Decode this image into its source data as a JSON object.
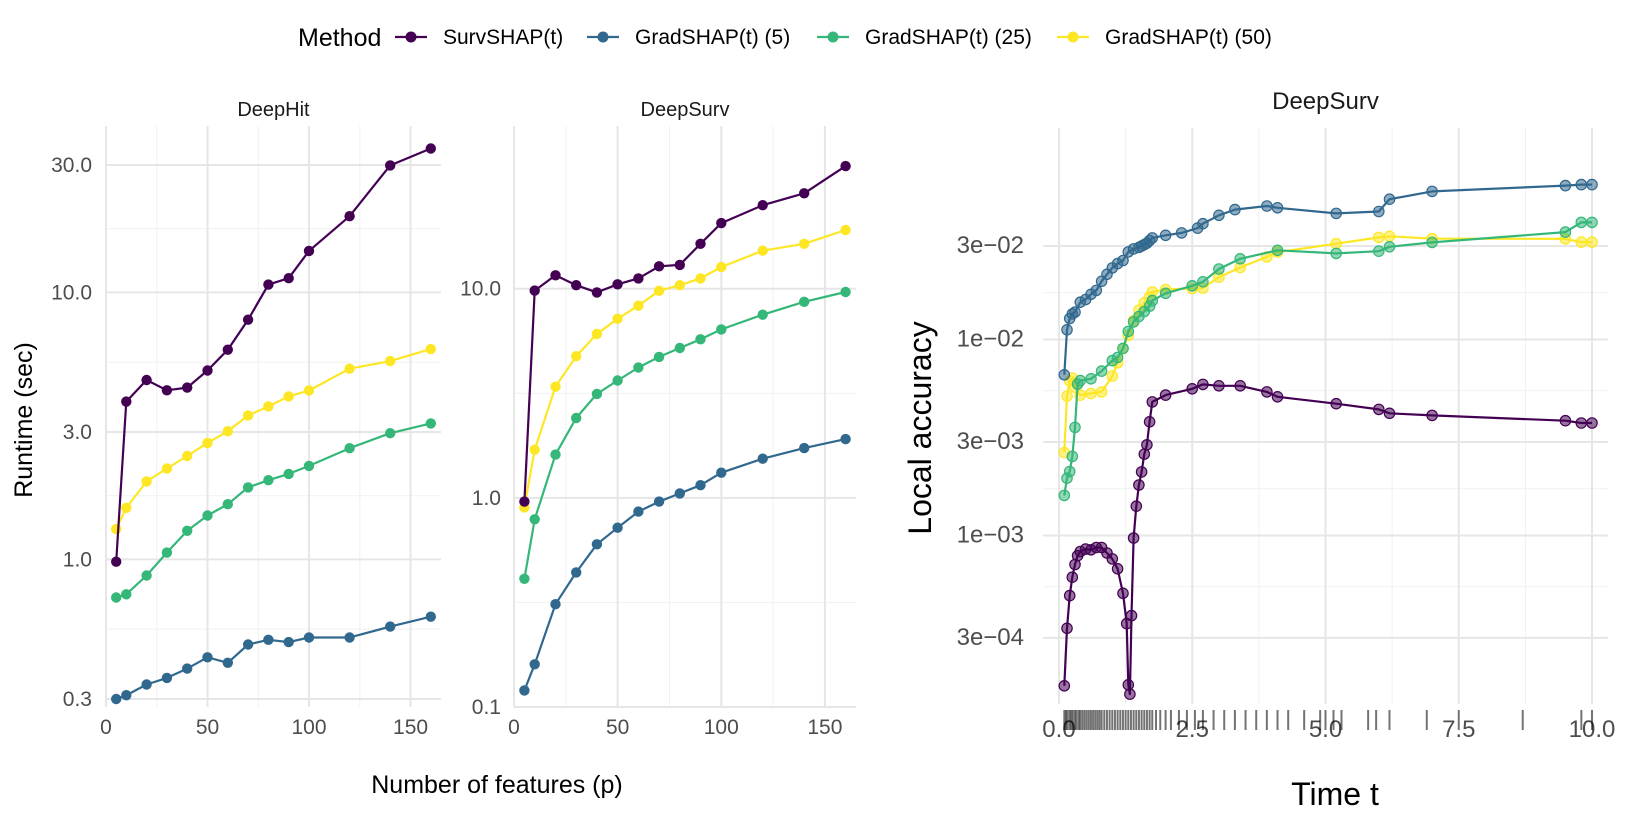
{
  "legend": {
    "title": "Method",
    "methods": [
      {
        "name": "SurvSHAP(t)",
        "color": "#440154"
      },
      {
        "name": "GradSHAP(t) (5)",
        "color": "#31688e"
      },
      {
        "name": "GradSHAP(t) (25)",
        "color": "#35b779"
      },
      {
        "name": "GradSHAP(t) (50)",
        "color": "#fde725"
      }
    ]
  },
  "chart_data": [
    {
      "type": "line",
      "title": "DeepHit",
      "ylabel": "Runtime (sec)",
      "xlabel": "Number of features (p)",
      "yscale": "log",
      "xlim": [
        0,
        165
      ],
      "ylim": [
        0.28,
        42
      ],
      "xticks": [
        0,
        50,
        100,
        150
      ],
      "xtick_labels": [
        "0",
        "50",
        "100",
        "150"
      ],
      "yticks": [
        0.3,
        1,
        3,
        10,
        30
      ],
      "ytick_labels": [
        "0.3",
        "1.0",
        "3.0",
        "10.0",
        "30.0"
      ],
      "x": [
        5,
        10,
        20,
        30,
        40,
        50,
        60,
        70,
        80,
        90,
        100,
        120,
        140,
        160
      ],
      "series": [
        {
          "name": "SurvSHAP(t)",
          "values": [
            0.98,
            3.9,
            4.7,
            4.3,
            4.4,
            5.1,
            6.1,
            7.9,
            10.7,
            11.3,
            14.3,
            19.3,
            29.9,
            34.6
          ]
        },
        {
          "name": "GradSHAP(t) (5)",
          "values": [
            0.3,
            0.31,
            0.34,
            0.36,
            0.39,
            0.43,
            0.41,
            0.48,
            0.5,
            0.49,
            0.51,
            0.51,
            0.56,
            0.61
          ]
        },
        {
          "name": "GradSHAP(t) (25)",
          "values": [
            0.72,
            0.74,
            0.87,
            1.06,
            1.28,
            1.46,
            1.61,
            1.86,
            1.98,
            2.09,
            2.24,
            2.61,
            2.97,
            3.23
          ]
        },
        {
          "name": "GradSHAP(t) (50)",
          "values": [
            1.3,
            1.56,
            1.96,
            2.19,
            2.44,
            2.73,
            3.02,
            3.46,
            3.74,
            4.08,
            4.29,
            5.18,
            5.53,
            6.13
          ]
        }
      ]
    },
    {
      "type": "line",
      "title": "DeepSurv",
      "ylabel": "",
      "xlabel": "",
      "yscale": "log",
      "xlim": [
        0,
        165
      ],
      "ylim": [
        0.1,
        60
      ],
      "xticks": [
        0,
        50,
        100,
        150
      ],
      "xtick_labels": [
        "0",
        "50",
        "100",
        "150"
      ],
      "yticks": [
        0.1,
        1,
        10
      ],
      "ytick_labels": [
        "0.1",
        "1.0",
        "10.0"
      ],
      "x": [
        5,
        10,
        20,
        30,
        40,
        50,
        60,
        70,
        80,
        90,
        100,
        120,
        140,
        160
      ],
      "series": [
        {
          "name": "SurvSHAP(t)",
          "values": [
            0.96,
            9.8,
            11.6,
            10.4,
            9.6,
            10.5,
            11.2,
            12.8,
            13.0,
            16.4,
            20.6,
            25.1,
            28.6,
            38.6
          ]
        },
        {
          "name": "GradSHAP(t) (5)",
          "values": [
            0.12,
            0.16,
            0.31,
            0.44,
            0.6,
            0.72,
            0.86,
            0.96,
            1.05,
            1.15,
            1.32,
            1.54,
            1.73,
            1.91
          ]
        },
        {
          "name": "GradSHAP(t) (25)",
          "values": [
            0.41,
            0.79,
            1.61,
            2.41,
            3.14,
            3.64,
            4.2,
            4.72,
            5.21,
            5.73,
            6.39,
            7.51,
            8.66,
            9.65
          ]
        },
        {
          "name": "GradSHAP(t) (50)",
          "values": [
            0.9,
            1.7,
            3.4,
            4.76,
            6.08,
            7.18,
            8.3,
            9.78,
            10.4,
            11.2,
            12.7,
            15.2,
            16.4,
            19.1
          ]
        }
      ]
    },
    {
      "type": "line",
      "title": "DeepSurv",
      "ylabel": "Local accuracy",
      "xlabel": "Time t",
      "yscale": "log",
      "xlim": [
        -0.3,
        10.3
      ],
      "ylim": [
        0.000138,
        0.12
      ],
      "xticks": [
        0,
        2.5,
        5,
        7.5,
        10
      ],
      "xtick_labels": [
        "0.0",
        "2.5",
        "5.0",
        "7.5",
        "10.0"
      ],
      "yticks": [
        0.0003,
        0.001,
        0.003,
        0.01,
        0.03
      ],
      "ytick_labels": [
        "3e−04",
        "1e−03",
        "3e−03",
        "1e−02",
        "3e−02"
      ],
      "series": [
        {
          "name": "SurvSHAP(t)",
          "x": [
            0.1,
            0.15,
            0.2,
            0.25,
            0.3,
            0.35,
            0.4,
            0.5,
            0.6,
            0.7,
            0.8,
            0.9,
            1.0,
            1.1,
            1.2,
            1.27,
            1.3,
            1.33,
            1.36,
            1.4,
            1.45,
            1.5,
            1.55,
            1.6,
            1.65,
            1.7,
            1.75,
            2.0,
            2.5,
            2.7,
            3.0,
            3.4,
            3.9,
            4.1,
            5.2,
            6.0,
            6.2,
            7.0,
            9.5,
            9.8,
            10.0
          ],
          "values": [
            0.000171,
            0.000336,
            0.000493,
            0.000612,
            0.000711,
            0.000788,
            0.000828,
            0.000852,
            0.000845,
            0.000868,
            0.000868,
            0.000814,
            0.000759,
            0.000676,
            0.000507,
            0.000355,
            0.000173,
            0.000155,
            0.00039,
            0.00097,
            0.00141,
            0.00181,
            0.00211,
            0.0026,
            0.0029,
            0.0038,
            0.0048,
            0.0052,
            0.0056,
            0.0059,
            0.0058,
            0.0058,
            0.0054,
            0.0051,
            0.0047,
            0.0044,
            0.0042,
            0.0041,
            0.00385,
            0.00375,
            0.00375
          ]
        },
        {
          "name": "GradSHAP(t) (5)",
          "x": [
            0.1,
            0.15,
            0.2,
            0.25,
            0.3,
            0.4,
            0.5,
            0.6,
            0.7,
            0.8,
            0.9,
            1.0,
            1.1,
            1.2,
            1.3,
            1.4,
            1.5,
            1.55,
            1.6,
            1.65,
            1.7,
            1.75,
            2.0,
            2.3,
            2.6,
            2.7,
            3.0,
            3.3,
            3.9,
            4.1,
            5.2,
            6.0,
            6.2,
            7.0,
            9.5,
            9.8,
            10.0
          ],
          "values": [
            0.0066,
            0.0112,
            0.0128,
            0.0135,
            0.0138,
            0.0155,
            0.016,
            0.017,
            0.0178,
            0.0198,
            0.0215,
            0.0232,
            0.0244,
            0.0253,
            0.028,
            0.029,
            0.0295,
            0.03,
            0.0305,
            0.031,
            0.032,
            0.033,
            0.034,
            0.035,
            0.037,
            0.039,
            0.043,
            0.046,
            0.048,
            0.047,
            0.044,
            0.045,
            0.052,
            0.057,
            0.061,
            0.0617,
            0.0617
          ]
        },
        {
          "name": "GradSHAP(t) (25)",
          "x": [
            0.1,
            0.15,
            0.2,
            0.25,
            0.3,
            0.35,
            0.4,
            0.6,
            0.8,
            1.0,
            1.1,
            1.2,
            1.3,
            1.4,
            1.5,
            1.6,
            1.7,
            1.75,
            2.0,
            2.5,
            2.7,
            3.0,
            3.4,
            4.1,
            5.2,
            6.0,
            6.2,
            7.0,
            9.5,
            9.8,
            10.0
          ],
          "values": [
            0.0016,
            0.00196,
            0.00212,
            0.00253,
            0.00356,
            0.00592,
            0.00617,
            0.0063,
            0.0069,
            0.0078,
            0.0081,
            0.009,
            0.011,
            0.0123,
            0.0131,
            0.0139,
            0.0148,
            0.0158,
            0.0172,
            0.0188,
            0.0197,
            0.0229,
            0.0258,
            0.0285,
            0.0275,
            0.0282,
            0.0297,
            0.0313,
            0.0353,
            0.0396,
            0.0396
          ]
        },
        {
          "name": "GradSHAP(t) (50)",
          "x": [
            0.1,
            0.15,
            0.2,
            0.25,
            0.3,
            0.4,
            0.6,
            0.8,
            1.0,
            1.1,
            1.2,
            1.3,
            1.4,
            1.5,
            1.6,
            1.7,
            1.75,
            2.0,
            2.5,
            2.7,
            3.0,
            3.4,
            3.9,
            4.1,
            5.2,
            6.0,
            6.2,
            7.0,
            9.5,
            9.8,
            10.0
          ],
          "values": [
            0.00265,
            0.00515,
            0.00615,
            0.00635,
            0.0057,
            0.0052,
            0.0053,
            0.0054,
            0.0065,
            0.0076,
            0.009,
            0.0105,
            0.0125,
            0.0141,
            0.0154,
            0.0165,
            0.0175,
            0.018,
            0.0182,
            0.0183,
            0.0208,
            0.0233,
            0.0264,
            0.0279,
            0.0308,
            0.0332,
            0.0336,
            0.0327,
            0.0326,
            0.0314,
            0.0314
          ]
        }
      ],
      "rug": [
        0.1,
        0.13,
        0.16,
        0.2,
        0.23,
        0.26,
        0.3,
        0.33,
        0.37,
        0.4,
        0.44,
        0.48,
        0.52,
        0.56,
        0.6,
        0.64,
        0.68,
        0.72,
        0.76,
        0.8,
        0.85,
        0.9,
        0.95,
        1.0,
        1.05,
        1.1,
        1.15,
        1.2,
        1.25,
        1.3,
        1.35,
        1.4,
        1.45,
        1.5,
        1.55,
        1.6,
        1.65,
        1.7,
        1.75,
        1.82,
        1.9,
        2.0,
        2.1,
        2.25,
        2.4,
        2.55,
        2.7,
        2.9,
        3.1,
        3.3,
        3.5,
        3.7,
        3.9,
        4.1,
        4.3,
        4.6,
        4.9,
        5.0,
        5.15,
        5.3,
        5.8,
        5.95,
        6.2,
        6.9,
        7.5,
        8.7,
        9.8,
        10.0
      ]
    }
  ]
}
